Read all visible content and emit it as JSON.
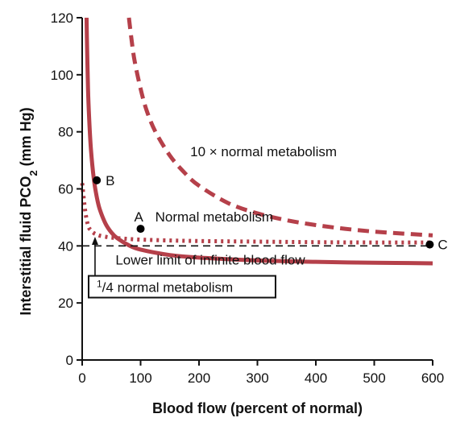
{
  "chart_data": {
    "type": "line",
    "xlabel": "Blood flow (percent of normal)",
    "ylabel_main": "Interstitial fluid PCO",
    "ylabel_sub": "2",
    "ylabel_units": " (mm Hg)",
    "xlim": [
      0,
      600
    ],
    "ylim": [
      0,
      120
    ],
    "x_ticks": [
      0,
      100,
      200,
      300,
      400,
      500,
      600
    ],
    "y_ticks": [
      0,
      20,
      40,
      60,
      80,
      100,
      120
    ],
    "grid": false,
    "colors": {
      "curve": "#b5404a",
      "axis": "#111111",
      "reference": "#111111"
    },
    "series": [
      {
        "name": "10 × normal metabolism",
        "style": "dashed",
        "x": [
          80,
          85,
          90,
          100,
          110,
          125,
          150,
          175,
          200,
          250,
          300,
          350,
          400,
          450,
          500,
          550,
          600
        ],
        "y": [
          120,
          111.5,
          104.6,
          95.1,
          87.7,
          80.2,
          71.7,
          65.7,
          61.1,
          55.0,
          51.4,
          49.0,
          47.3,
          46.0,
          45.0,
          44.3,
          43.7
        ]
      },
      {
        "name": "Normal metabolism",
        "style": "solid",
        "x": [
          7.5,
          8,
          10,
          12,
          15,
          20,
          25,
          30,
          40,
          50,
          60,
          80,
          100,
          150,
          200,
          300,
          400,
          500,
          600
        ],
        "y": [
          120,
          113.6,
          95.0,
          84.5,
          73.8,
          63.4,
          57.1,
          52.9,
          47.8,
          44.7,
          42.7,
          40.2,
          38.7,
          36.8,
          35.9,
          34.9,
          34.4,
          34.1,
          33.9
        ]
      },
      {
        "name": "1/4 normal metabolism",
        "style": "dotted",
        "x": [
          0,
          5,
          10,
          15,
          20,
          25,
          30,
          40,
          50,
          75,
          100,
          150,
          200,
          300,
          400,
          500,
          600
        ],
        "y": [
          62,
          52.5,
          47.2,
          45.4,
          44.5,
          44.0,
          43.6,
          43.2,
          42.9,
          42.5,
          42.2,
          41.9,
          41.7,
          41.5,
          41.3,
          41.2,
          41.2
        ]
      }
    ],
    "reference_line": {
      "label": "Lower limit of infinite blood flow",
      "y": 40,
      "x": [
        0,
        600
      ],
      "style": "dashed"
    },
    "points": [
      {
        "label": "A",
        "x": 100,
        "y": 46
      },
      {
        "label": "B",
        "x": 25,
        "y": 63
      },
      {
        "label": "C",
        "x": 595,
        "y": 40.5
      }
    ],
    "annotations": {
      "ten_x": "10 × normal metabolism",
      "normal": "Normal metabolism",
      "quarter_num": "1",
      "quarter_den": "4",
      "quarter_text": " normal metabolism"
    }
  }
}
